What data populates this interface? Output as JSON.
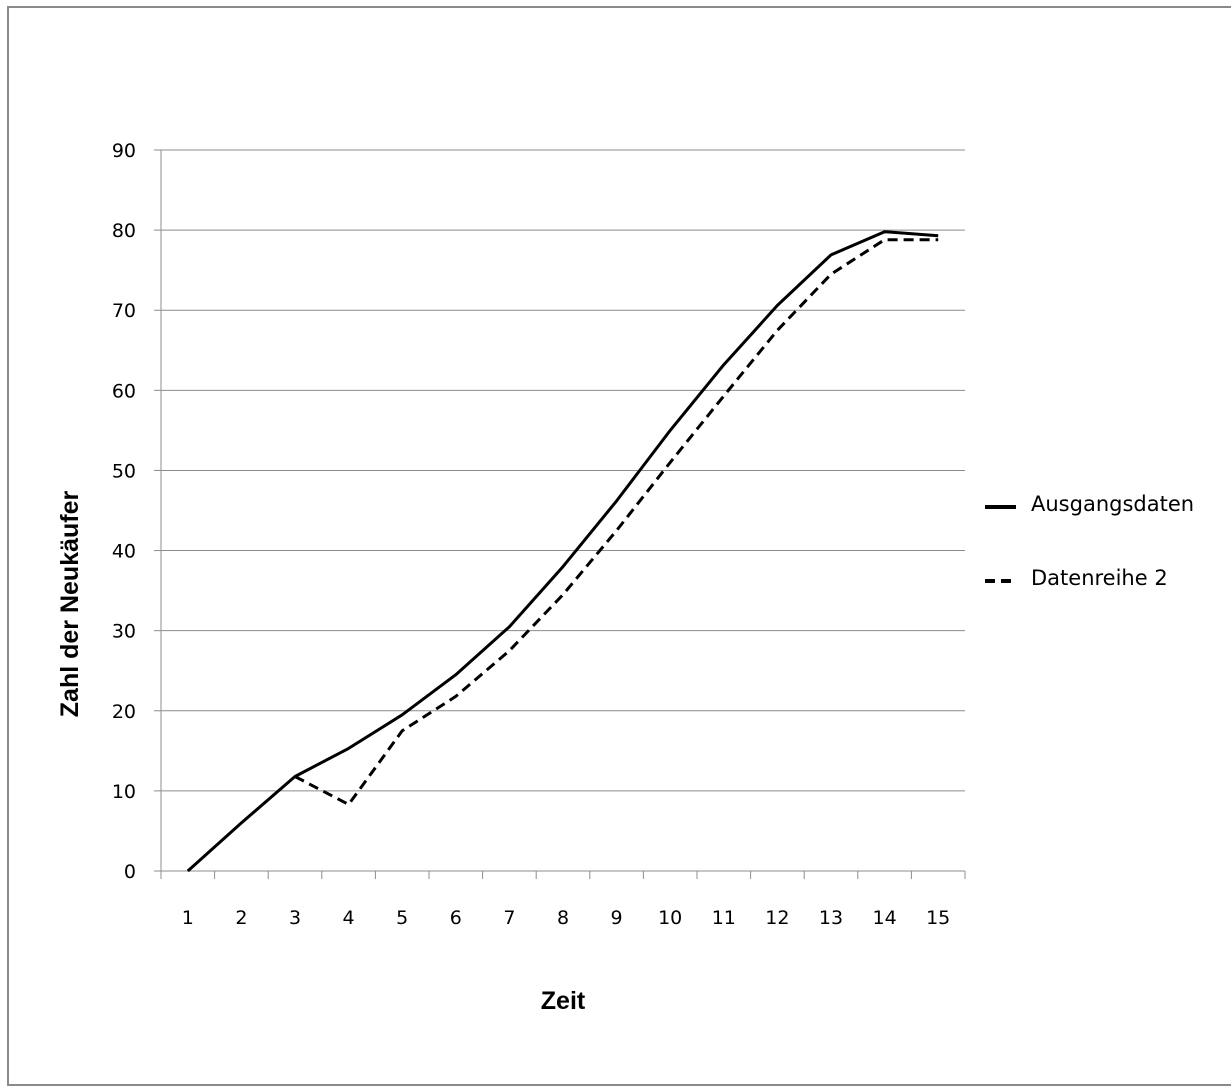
{
  "chart_data": {
    "type": "line",
    "title": "",
    "xlabel": "Zeit",
    "ylabel": "Zahl der Neukäufer",
    "categories": [
      "1",
      "2",
      "3",
      "4",
      "5",
      "6",
      "7",
      "8",
      "9",
      "10",
      "11",
      "12",
      "13",
      "14",
      "15"
    ],
    "ylim": [
      0,
      90
    ],
    "yticks": [
      0,
      10,
      20,
      30,
      40,
      50,
      60,
      70,
      80,
      90
    ],
    "grid": "horizontal",
    "legend_position": "right",
    "series": [
      {
        "name": "Ausgangsdaten",
        "style": "solid",
        "color": "#000000",
        "values": [
          0,
          6,
          11.8,
          15.3,
          19.5,
          24.5,
          30.5,
          38,
          46.2,
          55,
          63.2,
          70.6,
          76.9,
          79.8,
          79.3
        ]
      },
      {
        "name": "Datenreihe 2",
        "style": "dashed",
        "color": "#000000",
        "values": [
          null,
          null,
          11.8,
          8.3,
          17.5,
          21.8,
          27.5,
          34.5,
          42.5,
          51,
          59.3,
          67.5,
          74.5,
          78.8,
          78.8
        ]
      }
    ]
  }
}
